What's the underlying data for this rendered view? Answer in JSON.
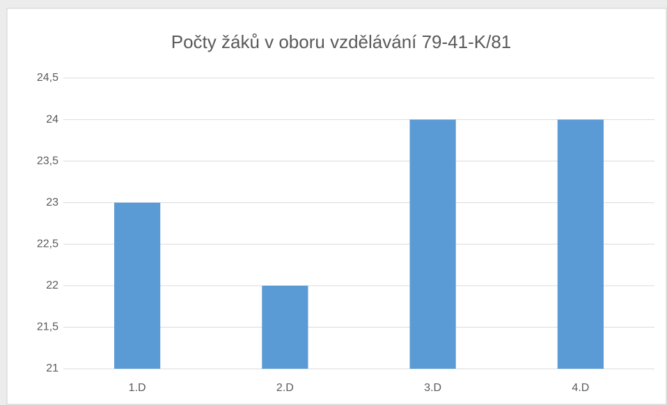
{
  "chart_data": {
    "type": "bar",
    "title": "Počty žáků v oboru vzdělávání 79-41-K/81",
    "categories": [
      "1.D",
      "2.D",
      "3.D",
      "4.D"
    ],
    "values": [
      23,
      22,
      24,
      24
    ],
    "color": "#5b9bd5",
    "ylim": [
      21,
      24.5
    ],
    "yticks": [
      21,
      {
        "value": 21.5,
        "label": "21,5"
      },
      22,
      {
        "value": 22.5,
        "label": "22,5"
      },
      23,
      {
        "value": 23.5,
        "label": "23,5"
      },
      24,
      {
        "value": 24.5,
        "label": "24,5"
      }
    ],
    "grid": true
  }
}
